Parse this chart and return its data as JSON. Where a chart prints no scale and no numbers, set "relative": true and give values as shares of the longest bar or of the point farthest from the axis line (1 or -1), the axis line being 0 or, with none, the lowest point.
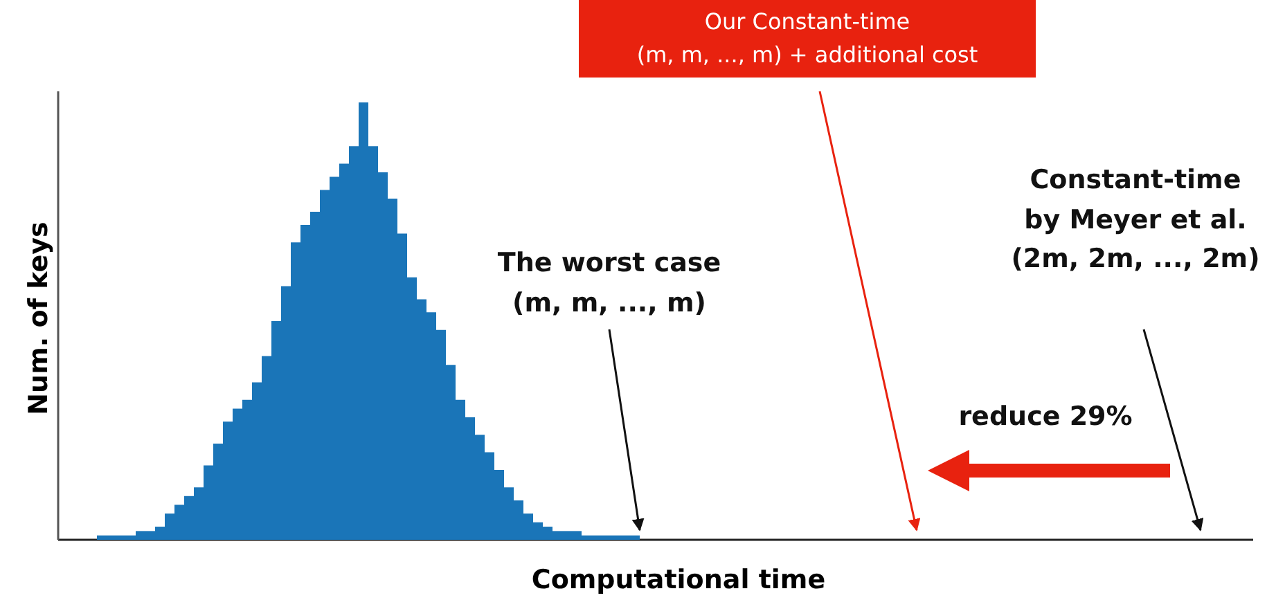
{
  "chart_data": {
    "type": "bar",
    "relative": true,
    "xlabel": "Computational time",
    "ylabel": "Num. of keys",
    "color": "#1a75b8",
    "legend": false,
    "grid": false,
    "categories": [
      null,
      null,
      null,
      null,
      null,
      null,
      null,
      null,
      null,
      null,
      null,
      null,
      null,
      null,
      null,
      null,
      null,
      null,
      null,
      null,
      null,
      null,
      null,
      null,
      null,
      null,
      null,
      null,
      null,
      null,
      null,
      null,
      null,
      null,
      null,
      null,
      null,
      null,
      null,
      null,
      null,
      null,
      null,
      null,
      null,
      null,
      null,
      null,
      null,
      null,
      null,
      null,
      null,
      null,
      null,
      null
    ],
    "values": [
      0.01,
      0.01,
      0.01,
      0.01,
      0.02,
      0.02,
      0.03,
      0.06,
      0.08,
      0.1,
      0.12,
      0.17,
      0.22,
      0.27,
      0.3,
      0.32,
      0.36,
      0.42,
      0.5,
      0.58,
      0.68,
      0.72,
      0.75,
      0.8,
      0.83,
      0.86,
      0.9,
      1.0,
      0.9,
      0.84,
      0.78,
      0.7,
      0.6,
      0.55,
      0.52,
      0.48,
      0.4,
      0.32,
      0.28,
      0.24,
      0.2,
      0.16,
      0.12,
      0.09,
      0.06,
      0.04,
      0.03,
      0.02,
      0.02,
      0.02,
      0.01,
      0.01,
      0.01,
      0.01,
      0.01,
      0.01
    ],
    "annotations": [
      "The worst case\n(m, m, ..., m)",
      "Our Constant-time\n(m, m, ..., m) + additional cost",
      "Constant-time\nby Meyer et al.\n(2m, 2m, ..., 2m)",
      "reduce 29%"
    ]
  }
}
